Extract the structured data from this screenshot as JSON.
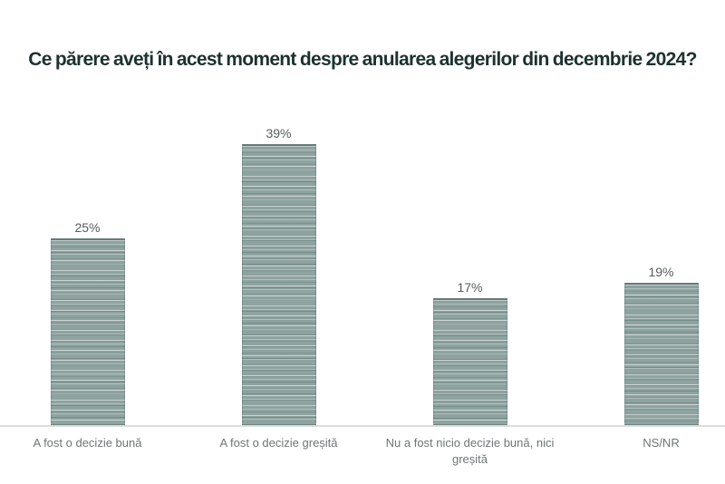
{
  "page": {
    "background_color": "#ffffff"
  },
  "chart_data": {
    "type": "bar",
    "orientation": "vertical",
    "title": "Ce părere aveți în acest moment despre anularea alegerilor din decembrie 2024?",
    "categories": [
      "A fost o decizie bună",
      "A fost o decizie greșită",
      "Nu a fost nicio decizie bună, nici greșită",
      "NS/NR"
    ],
    "values": [
      25,
      39,
      17,
      19
    ],
    "value_labels": [
      "25%",
      "39%",
      "17%",
      "19%"
    ],
    "xlabel": "",
    "ylabel": "",
    "ylim": [
      0,
      40
    ],
    "grid": false,
    "legend": false,
    "colors": {
      "title": "#1d3230",
      "bar_fill": "#8ea3a0",
      "bar_stripe_light": "#c3cfcc",
      "bar_stripe_dark": "#70817e",
      "value_label": "#565c5c",
      "category_label": "#6f7575",
      "axis_line": "#d9dddc"
    }
  }
}
